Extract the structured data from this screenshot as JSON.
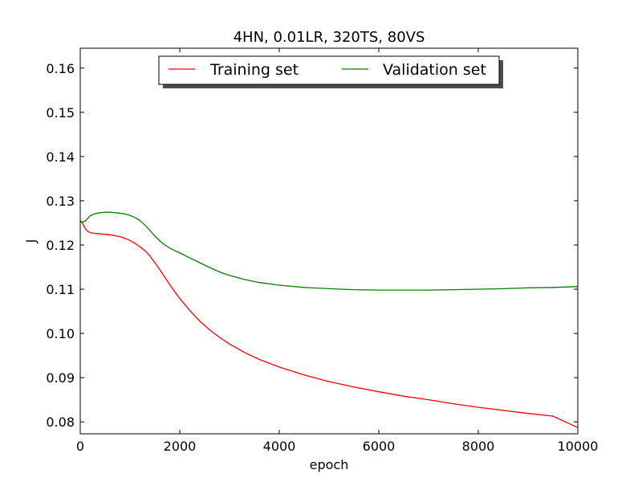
{
  "chart_data": {
    "type": "line",
    "title": "4HN, 0.01LR, 320TS, 80VS",
    "xlabel": "epoch",
    "ylabel": "J",
    "xlim": [
      0,
      10000
    ],
    "ylim": [
      0.0773,
      0.1645
    ],
    "xticks": [
      0,
      2000,
      4000,
      6000,
      8000,
      10000
    ],
    "xtick_labels": [
      "0",
      "2000",
      "4000",
      "6000",
      "8000",
      "10000"
    ],
    "yticks": [
      0.08,
      0.09,
      0.1,
      0.11,
      0.12,
      0.13,
      0.14,
      0.15,
      0.16
    ],
    "ytick_labels": [
      "0.08",
      "0.09",
      "0.10",
      "0.11",
      "0.12",
      "0.13",
      "0.14",
      "0.15",
      "0.16"
    ],
    "grid": false,
    "legend_position": "top-center",
    "series": [
      {
        "name": "Training set",
        "color": "#ff0000",
        "x": [
          0,
          50,
          100,
          150,
          200,
          300,
          400,
          500,
          600,
          700,
          800,
          900,
          1000,
          1100,
          1200,
          1300,
          1400,
          1500,
          1600,
          1700,
          1800,
          1900,
          2000,
          2200,
          2400,
          2600,
          2800,
          3000,
          3300,
          3600,
          4000,
          4500,
          5000,
          5500,
          6000,
          6500,
          7000,
          7500,
          8000,
          8500,
          9000,
          9500,
          10000
        ],
        "y": [
          0.1255,
          0.1248,
          0.1237,
          0.1231,
          0.1228,
          0.1226,
          0.1225,
          0.1224,
          0.1223,
          0.1221,
          0.1219,
          0.1215,
          0.121,
          0.1204,
          0.1196,
          0.1187,
          0.1175,
          0.116,
          0.1144,
          0.1127,
          0.111,
          0.1094,
          0.1079,
          0.1052,
          0.1028,
          0.1008,
          0.0991,
          0.0976,
          0.0957,
          0.0941,
          0.0924,
          0.0906,
          0.0891,
          0.0879,
          0.0868,
          0.0858,
          0.085,
          0.0841,
          0.0833,
          0.0826,
          0.0819,
          0.0813,
          0.0787
        ]
      },
      {
        "name": "Validation set",
        "color": "#008000",
        "x": [
          0,
          50,
          100,
          150,
          200,
          300,
          400,
          500,
          600,
          700,
          800,
          900,
          1000,
          1100,
          1200,
          1300,
          1400,
          1500,
          1600,
          1700,
          1800,
          1900,
          2000,
          2200,
          2400,
          2600,
          2800,
          3000,
          3300,
          3600,
          4000,
          4500,
          5000,
          5500,
          6000,
          6500,
          7000,
          7500,
          8000,
          8500,
          9000,
          9500,
          10000
        ],
        "y": [
          0.1252,
          0.1252,
          0.1254,
          0.126,
          0.1266,
          0.1271,
          0.1273,
          0.1274,
          0.1274,
          0.1273,
          0.1272,
          0.127,
          0.1267,
          0.1262,
          0.1255,
          0.1245,
          0.1233,
          0.122,
          0.1209,
          0.12,
          0.1193,
          0.1187,
          0.1182,
          0.1171,
          0.116,
          0.1149,
          0.1139,
          0.1131,
          0.1122,
          0.1115,
          0.1109,
          0.1104,
          0.1101,
          0.1099,
          0.1098,
          0.1098,
          0.1098,
          0.1099,
          0.11,
          0.1101,
          0.1103,
          0.1104,
          0.1106
        ]
      }
    ]
  }
}
